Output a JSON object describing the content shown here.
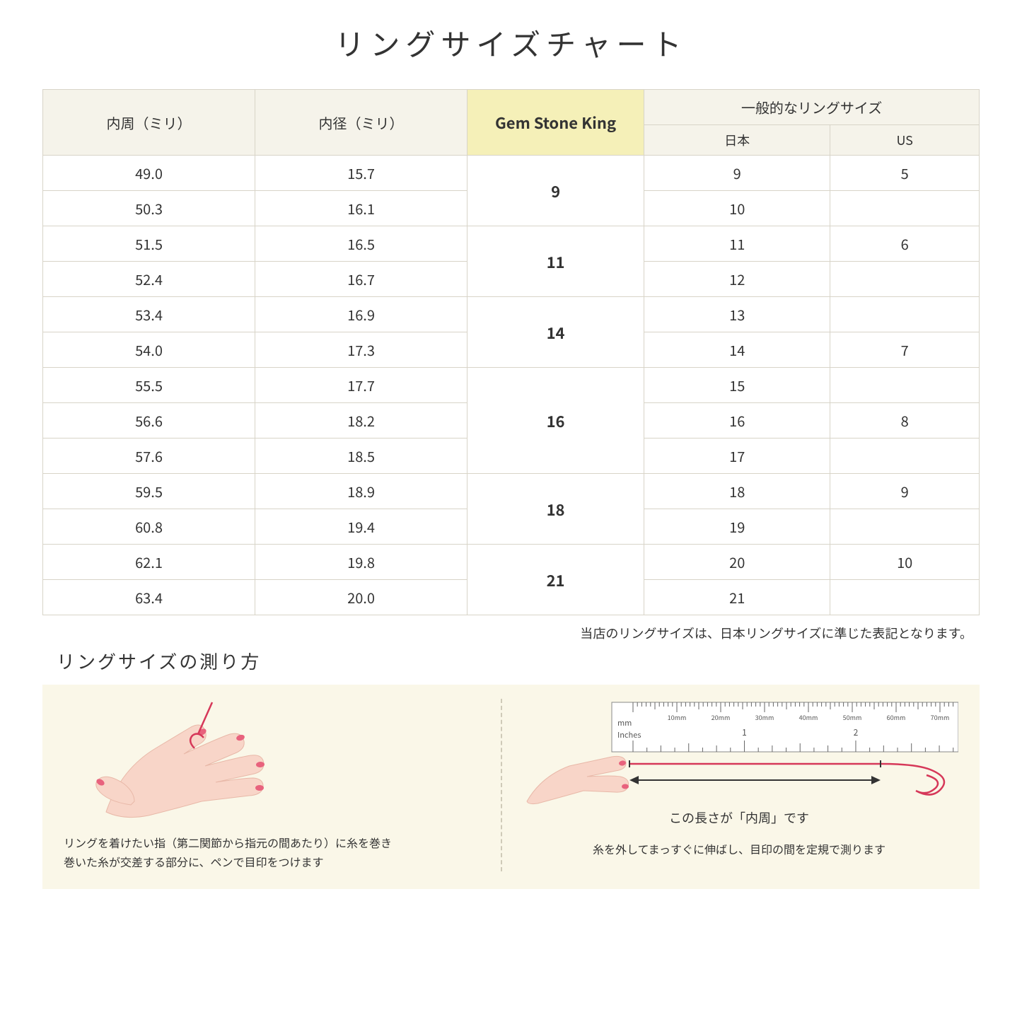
{
  "title": "リングサイズチャート",
  "table": {
    "headers": {
      "circumference": "内周（ミリ）",
      "diameter": "内径（ミリ）",
      "gsk": "Gem Stone King",
      "common_top": "一般的なリングサイズ",
      "common_jp": "日本",
      "common_us": "US"
    },
    "groups": [
      {
        "gsk": "9",
        "rows": [
          {
            "c": "49.0",
            "d": "15.7",
            "jp": "9",
            "us": "5"
          },
          {
            "c": "50.3",
            "d": "16.1",
            "jp": "10",
            "us": ""
          }
        ]
      },
      {
        "gsk": "11",
        "rows": [
          {
            "c": "51.5",
            "d": "16.5",
            "jp": "11",
            "us": "6"
          },
          {
            "c": "52.4",
            "d": "16.7",
            "jp": "12",
            "us": ""
          }
        ]
      },
      {
        "gsk": "14",
        "rows": [
          {
            "c": "53.4",
            "d": "16.9",
            "jp": "13",
            "us": ""
          },
          {
            "c": "54.0",
            "d": "17.3",
            "jp": "14",
            "us": "7"
          }
        ]
      },
      {
        "gsk": "16",
        "rows": [
          {
            "c": "55.5",
            "d": "17.7",
            "jp": "15",
            "us": ""
          },
          {
            "c": "56.6",
            "d": "18.2",
            "jp": "16",
            "us": "8"
          },
          {
            "c": "57.6",
            "d": "18.5",
            "jp": "17",
            "us": ""
          }
        ]
      },
      {
        "gsk": "18",
        "rows": [
          {
            "c": "59.5",
            "d": "18.9",
            "jp": "18",
            "us": "9"
          },
          {
            "c": "60.8",
            "d": "19.4",
            "jp": "19",
            "us": ""
          }
        ]
      },
      {
        "gsk": "21",
        "rows": [
          {
            "c": "62.1",
            "d": "19.8",
            "jp": "20",
            "us": "10"
          },
          {
            "c": "63.4",
            "d": "20.0",
            "jp": "21",
            "us": ""
          }
        ]
      }
    ]
  },
  "note": "当店のリングサイズは、日本リングサイズに準じた表記となります。",
  "howto": {
    "title": "リングサイズの測り方",
    "left_text": "リングを着けたい指（第二関節から指元の間あたり）に糸を巻き\n巻いた糸が交差する部分に、ペンで目印をつけます",
    "right_arrow_label": "この長さが「内周」です",
    "right_text": "糸を外してまっすぐに伸ばし、目印の間を定規で測ります",
    "ruler": {
      "mm_label": "mm",
      "inches_label": "Inches",
      "mm_ticks": [
        "10mm",
        "20mm",
        "30mm",
        "40mm",
        "50mm",
        "60mm",
        "70mm"
      ],
      "inch_major": [
        "1",
        "2"
      ]
    }
  },
  "colors": {
    "header_bg": "#f5f3ea",
    "highlight_bg": "#f5f0b8",
    "border": "#d8d4c8",
    "panel_bg": "#faf7e8",
    "skin": "#f8d5c8",
    "nail": "#e8627d",
    "thread": "#d63859"
  }
}
